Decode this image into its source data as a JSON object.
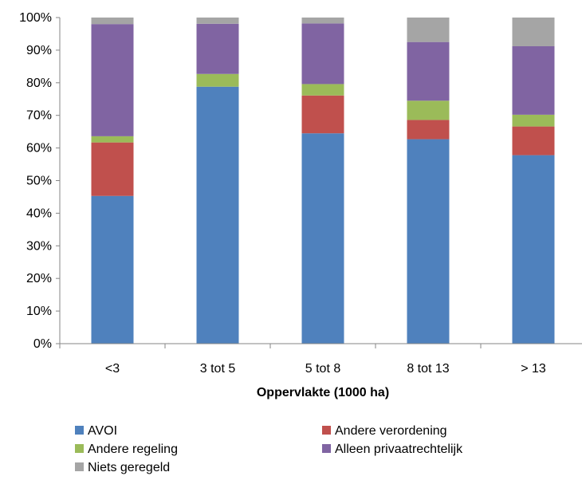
{
  "chart_data": {
    "type": "bar",
    "stacked": true,
    "percent": true,
    "categories": [
      "<3",
      "3 tot 5",
      "5 tot 8",
      "8 tot 13",
      "> 13"
    ],
    "series": [
      {
        "name": "AVOI",
        "color": "#4F81BD",
        "values": [
          45.3,
          78.8,
          64.5,
          62.7,
          57.8
        ]
      },
      {
        "name": "Andere verordening",
        "color": "#C0504D",
        "values": [
          16.4,
          0.0,
          11.6,
          5.9,
          8.8
        ]
      },
      {
        "name": "Andere regeling",
        "color": "#9BBB59",
        "values": [
          1.9,
          3.9,
          3.5,
          5.9,
          3.6
        ]
      },
      {
        "name": "Alleen privaatrechtelijk",
        "color": "#8064A2",
        "values": [
          34.4,
          15.4,
          18.6,
          18.0,
          21.0
        ]
      },
      {
        "name": "Niets geregeld",
        "color": "#A5A5A5",
        "values": [
          2.0,
          1.9,
          1.8,
          7.5,
          8.8
        ]
      }
    ],
    "xlabel": "Oppervlakte (1000 ha)",
    "ylabel": "",
    "ylim": [
      0,
      100
    ],
    "yticks": [
      "0%",
      "10%",
      "20%",
      "30%",
      "40%",
      "50%",
      "60%",
      "70%",
      "80%",
      "90%",
      "100%"
    ],
    "grid": false,
    "legend_position": "bottom"
  }
}
